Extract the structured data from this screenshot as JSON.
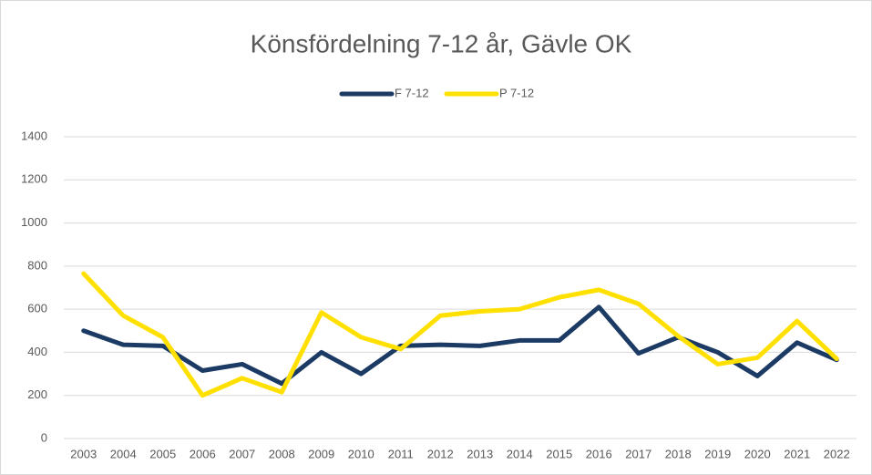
{
  "chart_data": {
    "type": "line",
    "title": "Könsfördelning 7-12 år, Gävle OK",
    "categories": [
      "2003",
      "2004",
      "2005",
      "2006",
      "2007",
      "2008",
      "2009",
      "2010",
      "2011",
      "2012",
      "2013",
      "2014",
      "2015",
      "2016",
      "2017",
      "2018",
      "2019",
      "2020",
      "2021",
      "2022"
    ],
    "series": [
      {
        "name": "F 7-12",
        "color": "#1b3a64",
        "values": [
          500,
          435,
          430,
          315,
          345,
          255,
          400,
          300,
          430,
          435,
          430,
          455,
          455,
          610,
          395,
          470,
          400,
          290,
          445,
          365
        ]
      },
      {
        "name": "P 7-12",
        "color": "#ffe000",
        "values": [
          765,
          570,
          470,
          200,
          280,
          215,
          585,
          470,
          415,
          570,
          590,
          600,
          655,
          690,
          625,
          475,
          345,
          375,
          545,
          370
        ]
      }
    ],
    "ylim": [
      0,
      1400
    ],
    "yticks": [
      0,
      200,
      400,
      600,
      800,
      1000,
      1200,
      1400
    ],
    "grid": true,
    "legend": "top"
  }
}
